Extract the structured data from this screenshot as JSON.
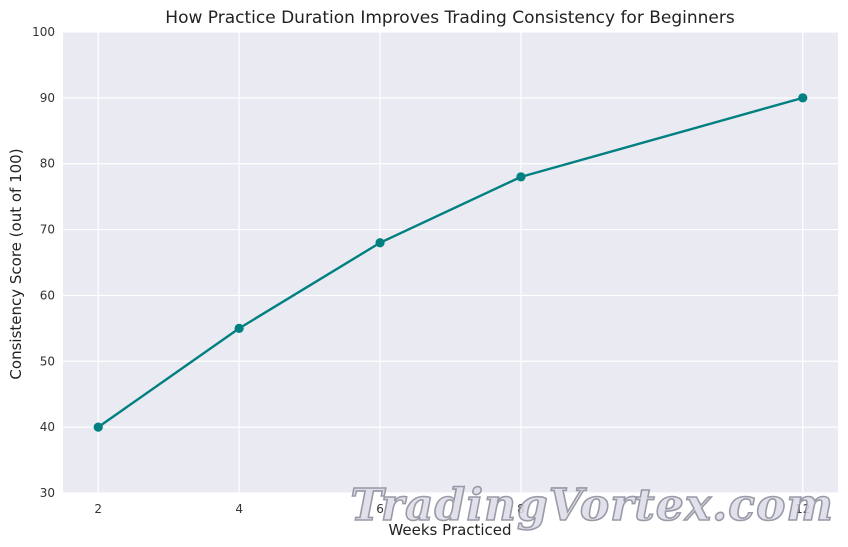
{
  "chart_data": {
    "type": "line",
    "title": "How Practice Duration Improves Trading Consistency for Beginners",
    "xlabel": "Weeks Practiced",
    "ylabel": "Consistency Score (out of 100)",
    "x": [
      2,
      4,
      6,
      8,
      12
    ],
    "series": [
      {
        "values": [
          40,
          55,
          68,
          78,
          90
        ]
      }
    ],
    "xlim": [
      1.5,
      12.5
    ],
    "ylim": [
      30,
      100
    ],
    "xticks": [
      2,
      4,
      6,
      8,
      12
    ],
    "yticks": [
      30,
      40,
      50,
      60,
      70,
      80,
      90,
      100
    ],
    "grid": true,
    "colors": {
      "line": "#008080",
      "plot_background": "#eaeaf2",
      "grid": "#ffffff"
    }
  },
  "watermark": {
    "text": "TradingVortex.com"
  }
}
